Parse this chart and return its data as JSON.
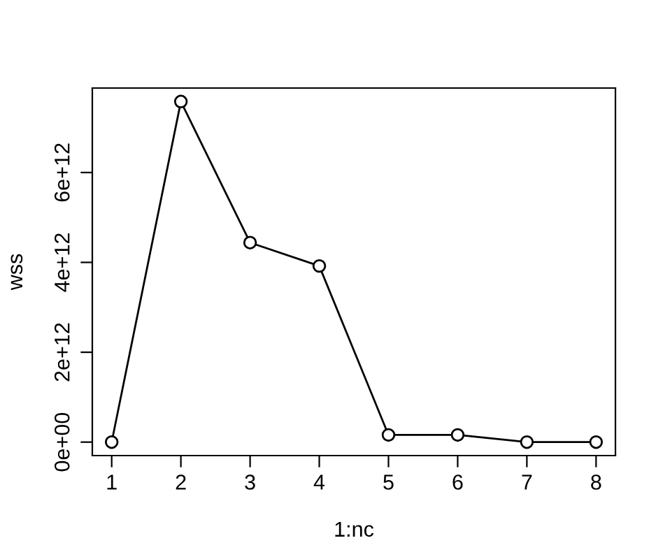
{
  "chart_data": {
    "type": "line",
    "xlabel": "1:nc",
    "ylabel": "wss",
    "x": [
      1,
      2,
      3,
      4,
      5,
      6,
      7,
      8
    ],
    "values": [
      0,
      7580000000000.0,
      4440000000000.0,
      3920000000000.0,
      160000000000.0,
      160000000000.0,
      0,
      0
    ],
    "color": "#000000",
    "marker": "circle",
    "line_style": "solid",
    "grid": false,
    "legend": false,
    "xlim": [
      0.72,
      8.28
    ],
    "ylim": [
      -300000000000.0,
      7880000000000.0
    ],
    "xticks": [
      1,
      2,
      3,
      4,
      5,
      6,
      7,
      8
    ],
    "yticks": [
      {
        "value": 0,
        "label": "0e+00"
      },
      {
        "value": 2000000000000.0,
        "label": "2e+12"
      },
      {
        "value": 4000000000000.0,
        "label": "4e+12"
      },
      {
        "value": 6000000000000.0,
        "label": "6e+12"
      }
    ]
  }
}
